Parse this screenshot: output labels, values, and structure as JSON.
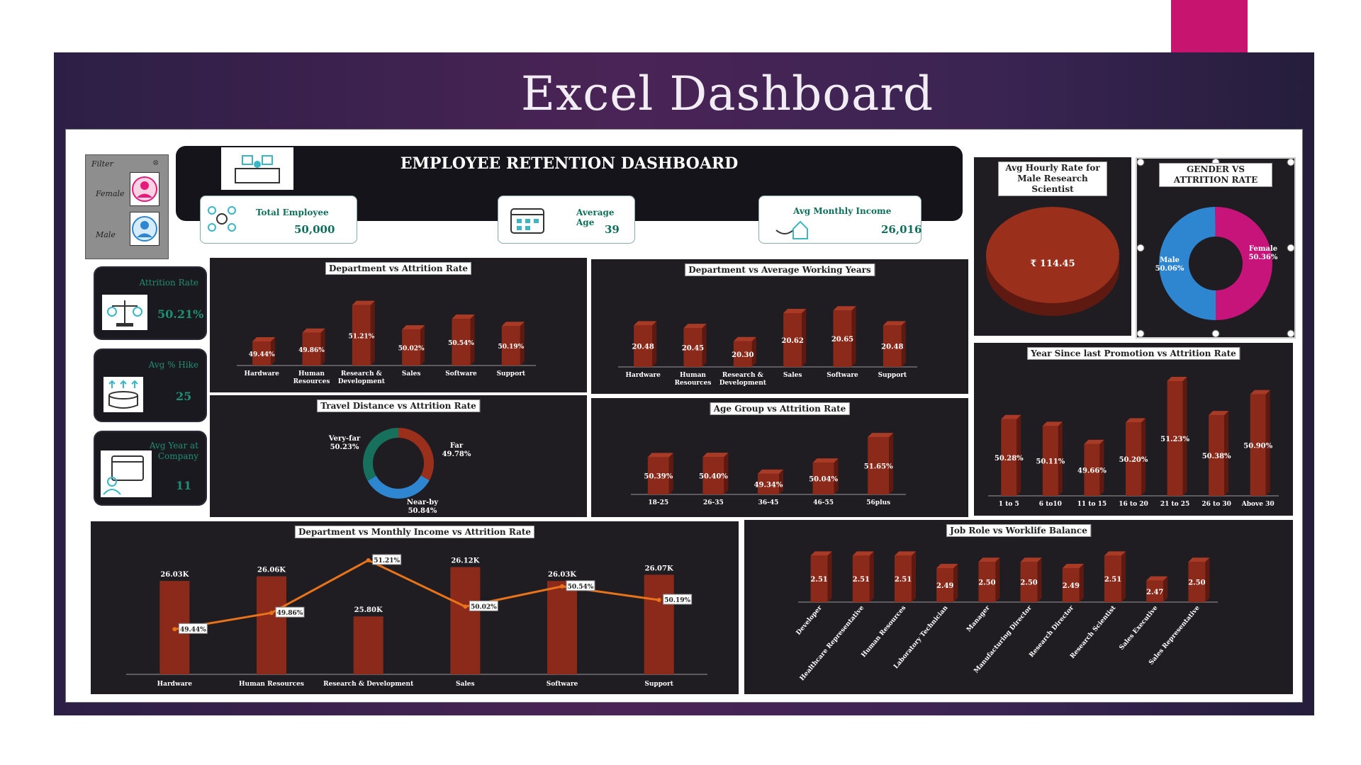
{
  "page_title": "Excel Dashboard",
  "dashboard_title": "EMPLOYEE RETENTION DASHBOARD",
  "filter": {
    "label": "Filter",
    "options": [
      "Female",
      "Male"
    ]
  },
  "kpis": {
    "total_employee": {
      "label": "Total Employee",
      "value": "50,000"
    },
    "average_age": {
      "label": "Average Age",
      "value": "39"
    },
    "avg_monthly_income": {
      "label": "Avg Monthly Income",
      "value": "26,016"
    }
  },
  "side_kpis": {
    "attrition_rate": {
      "label": "Attrition Rate",
      "value": "50.21%"
    },
    "avg_hike": {
      "label": "Avg % Hike",
      "value": "25"
    },
    "avg_year": {
      "label": "Avg Year at Company",
      "value": "11"
    }
  },
  "colors": {
    "bar": "#8b2a1a",
    "panel": "#1f1d22",
    "female": "#c7147a",
    "male": "#2e86d1",
    "line": "#e8731a",
    "accent": "#0f6f5a"
  },
  "chart_data": [
    {
      "id": "dept_attrition",
      "type": "bar",
      "title": "Department vs Attrition Rate",
      "categories": [
        "Hardware",
        "Human Resources",
        "Research & Development",
        "Sales",
        "Software",
        "Support"
      ],
      "values": [
        49.44,
        49.86,
        51.21,
        50.02,
        50.54,
        50.19
      ],
      "labels": [
        "49.44%",
        "49.86%",
        "51.21%",
        "50.02%",
        "50.54%",
        "50.19%"
      ]
    },
    {
      "id": "dept_years",
      "type": "bar",
      "title": "Department vs Average Working Years",
      "categories": [
        "Hardware",
        "Human Resources",
        "Research & Development",
        "Sales",
        "Software",
        "Support"
      ],
      "values": [
        20.48,
        20.45,
        20.3,
        20.62,
        20.65,
        20.48
      ],
      "labels": [
        "20.48",
        "20.45",
        "20.30",
        "20.62",
        "20.65",
        "20.48"
      ]
    },
    {
      "id": "hourly_rate",
      "type": "pie",
      "title": "Avg Hourly Rate for Male Research Scientist",
      "value_label": "₹ 114.45"
    },
    {
      "id": "gender_attrition",
      "type": "pie",
      "title": "GENDER VS ATTRITION RATE",
      "slices": [
        {
          "name": "Male",
          "value": 50.06,
          "label": "50.06%"
        },
        {
          "name": "Female",
          "value": 50.36,
          "label": "50.36%"
        }
      ]
    },
    {
      "id": "travel_attrition",
      "type": "pie",
      "title": "Travel Distance vs Attrition Rate",
      "slices": [
        {
          "name": "Far",
          "value": 49.78,
          "label": "49.78%"
        },
        {
          "name": "Near-by",
          "value": 50.84,
          "label": "50.84%"
        },
        {
          "name": "Very-far",
          "value": 50.23,
          "label": "50.23%"
        }
      ]
    },
    {
      "id": "age_attrition",
      "type": "bar",
      "title": "Age Group vs Attrition Rate",
      "categories": [
        "18-25",
        "26-35",
        "36-45",
        "46-55",
        "56plus"
      ],
      "values": [
        50.39,
        50.4,
        49.34,
        50.04,
        51.65
      ],
      "labels": [
        "50.39%",
        "50.40%",
        "49.34%",
        "50.04%",
        "51.65%"
      ]
    },
    {
      "id": "promotion_attrition",
      "type": "bar",
      "title": "Year Since last Promotion vs Attrition Rate",
      "categories": [
        "1 to 5",
        "6 to10",
        "11 to 15",
        "16 to 20",
        "21 to 25",
        "26 to 30",
        "Above 30"
      ],
      "values": [
        50.28,
        50.11,
        49.66,
        50.2,
        51.23,
        50.38,
        50.9
      ],
      "labels": [
        "50.28%",
        "50.11%",
        "49.66%",
        "50.20%",
        "51.23%",
        "50.38%",
        "50.90%"
      ]
    },
    {
      "id": "dept_income_attrition",
      "type": "bar",
      "title": "Department vs Monthly Income vs Attrition Rate",
      "categories": [
        "Hardware",
        "Human Resources",
        "Research & Development",
        "Sales",
        "Software",
        "Support"
      ],
      "series": [
        {
          "name": "Monthly Income",
          "values": [
            26.03,
            26.06,
            25.8,
            26.12,
            26.03,
            26.07
          ],
          "labels": [
            "26.03K",
            "26.06K",
            "25.80K",
            "26.12K",
            "26.03K",
            "26.07K"
          ]
        },
        {
          "name": "Attrition Rate",
          "type": "line",
          "values": [
            49.44,
            49.86,
            51.21,
            50.02,
            50.54,
            50.19
          ],
          "labels": [
            "49.44%",
            "49.86%",
            "51.21%",
            "50.02%",
            "50.54%",
            "50.19%"
          ]
        }
      ]
    },
    {
      "id": "jobrole_worklife",
      "type": "bar",
      "title": "Job Role vs Worklife Balance",
      "categories": [
        "Developer",
        "Healthcare Representative",
        "Human Resources",
        "Laboratory Technician",
        "Manager",
        "Manufacturing Director",
        "Research Director",
        "Research Scientist",
        "Sales Executive",
        "Sales Representative"
      ],
      "values": [
        2.51,
        2.51,
        2.51,
        2.49,
        2.5,
        2.5,
        2.49,
        2.51,
        2.47,
        2.5
      ],
      "labels": [
        "2.51",
        "2.51",
        "2.51",
        "2.49",
        "2.50",
        "2.50",
        "2.49",
        "2.51",
        "2.47",
        "2.50"
      ]
    }
  ]
}
